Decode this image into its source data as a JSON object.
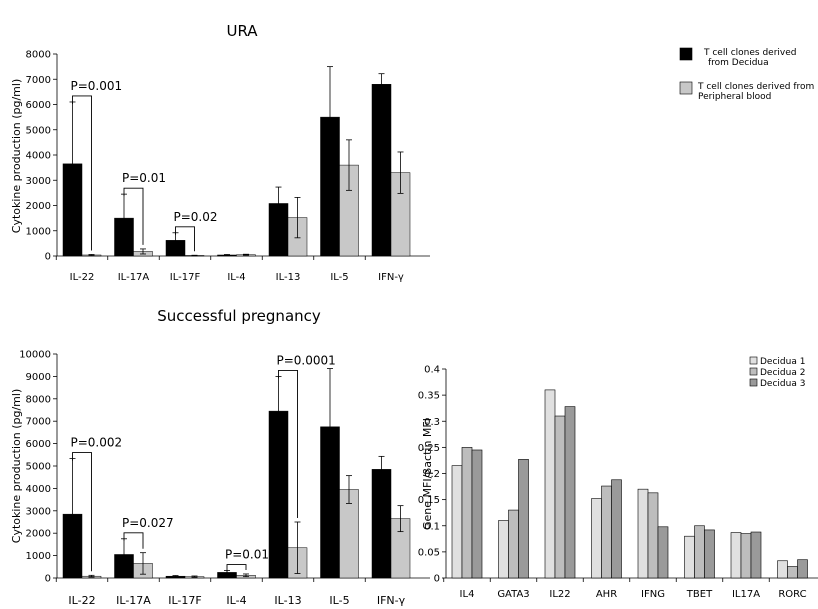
{
  "chart_data": [
    {
      "type": "bar",
      "title": "URA",
      "ylabel": "Cytokine production (pg/ml)",
      "ylim": [
        0,
        8000
      ],
      "yticks": [
        0,
        1000,
        2000,
        3000,
        4000,
        5000,
        6000,
        7000,
        8000
      ],
      "categories": [
        "IL-22",
        "IL-17A",
        "IL-17F",
        "IL-4",
        "IL-13",
        "IL-5",
        "IFN-γ"
      ],
      "series": [
        {
          "name": "T cell clones derived from Decidua",
          "color": "#000000",
          "values": [
            3650,
            1500,
            620,
            40,
            2080,
            5500,
            6800
          ],
          "errors": [
            2450,
            950,
            300,
            20,
            650,
            2000,
            420
          ]
        },
        {
          "name": "T cell clones derived from Peripheral blood",
          "color": "#c8c8c8",
          "values": [
            40,
            180,
            20,
            50,
            1520,
            3600,
            3300
          ],
          "errors": [
            20,
            100,
            10,
            20,
            800,
            1000,
            820
          ]
        }
      ],
      "legend_lines": [
        [
          "T cell clones derived",
          "from Decidua"
        ],
        [
          "T cell clones derived from",
          "Peripheral blood"
        ]
      ],
      "legend_position": "right",
      "annotations": [
        {
          "text": "P=0.001",
          "from": 0
        },
        {
          "text": "P=0.01",
          "from": 1
        },
        {
          "text": "P=0.02",
          "from": 2
        }
      ]
    },
    {
      "type": "bar",
      "title": "Successful pregnancy",
      "ylabel": "Cytokine production (pg/ml)",
      "ylim": [
        0,
        10000
      ],
      "yticks": [
        0,
        1000,
        2000,
        3000,
        4000,
        5000,
        6000,
        7000,
        8000,
        9000,
        10000
      ],
      "categories": [
        "IL-22",
        "IL-17A",
        "IL-17F",
        "IL-4",
        "IL-13",
        "IL-5",
        "IFN-γ"
      ],
      "series": [
        {
          "name": "T cell clones derived from Decidua",
          "color": "#000000",
          "values": [
            2850,
            1050,
            80,
            250,
            7450,
            6750,
            4850
          ],
          "errors": [
            2480,
            700,
            30,
            80,
            1550,
            2600,
            580
          ]
        },
        {
          "name": "T cell clones derived from Peripheral blood",
          "color": "#c8c8c8",
          "values": [
            80,
            650,
            60,
            120,
            1350,
            3950,
            2650
          ],
          "errors": [
            40,
            480,
            30,
            60,
            1150,
            620,
            580
          ]
        }
      ],
      "annotations": [
        {
          "text": "P=0.002",
          "from": 0
        },
        {
          "text": "P=0.027",
          "from": 1
        },
        {
          "text": "P=0.01",
          "from": 3
        },
        {
          "text": "P=0.0001",
          "from": 4
        }
      ]
    },
    {
      "type": "bar",
      "title": "",
      "ylabel": "Gene MFI/βactin MFI",
      "ylim": [
        0,
        0.4
      ],
      "yticks": [
        "0",
        "0.05",
        "0.1",
        "0.15",
        "0.2",
        "0.25",
        "0.3",
        "0.35",
        "0.4"
      ],
      "categories": [
        "IL4",
        "GATA3",
        "IL22",
        "AHR",
        "IFNG",
        "TBET",
        "IL17A",
        "RORC"
      ],
      "series": [
        {
          "name": "Decidua 1",
          "color": "#e0e0e0",
          "values": [
            0.215,
            0.11,
            0.36,
            0.152,
            0.17,
            0.08,
            0.087,
            0.033
          ]
        },
        {
          "name": "Decidua 2",
          "color": "#bdbdbd",
          "values": [
            0.25,
            0.13,
            0.31,
            0.176,
            0.163,
            0.1,
            0.085,
            0.022
          ]
        },
        {
          "name": "Decidua 3",
          "color": "#9a9a9a",
          "values": [
            0.245,
            0.227,
            0.328,
            0.188,
            0.098,
            0.092,
            0.088,
            0.035
          ]
        }
      ],
      "legend_position": "top-right"
    }
  ]
}
